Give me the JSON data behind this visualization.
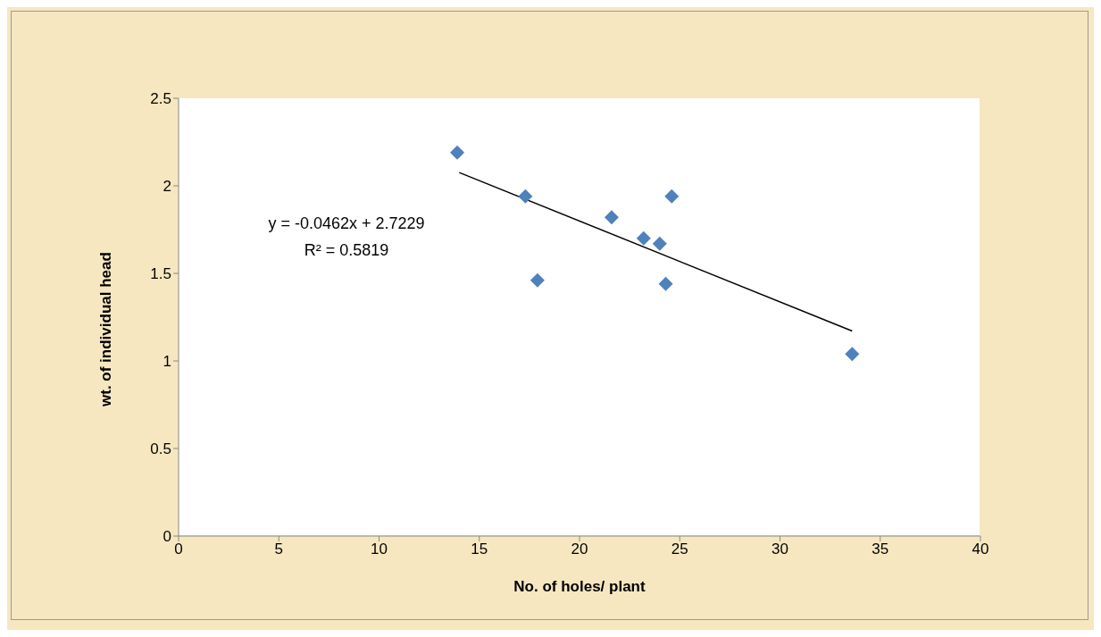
{
  "chart_data": {
    "type": "scatter",
    "xlabel": "No. of holes/ plant",
    "ylabel": "wt. of individual head",
    "xlim": [
      0,
      40
    ],
    "xticks": [
      0,
      5,
      10,
      15,
      20,
      25,
      30,
      35,
      40
    ],
    "ylim": [
      0,
      2.5
    ],
    "yticks": [
      0,
      0.5,
      1,
      1.5,
      2,
      2.5
    ],
    "series": [
      {
        "marker": "diamond",
        "color": "#4f81bd",
        "x": [
          13.9,
          17.3,
          17.9,
          21.6,
          23.2,
          24.0,
          24.3,
          24.6,
          33.6
        ],
        "values": [
          2.19,
          1.94,
          1.46,
          1.82,
          1.7,
          1.67,
          1.44,
          1.94,
          1.04
        ]
      },
      {
        "type": "line",
        "color": "#000000",
        "x": [
          14,
          33.6
        ],
        "values": [
          2.076,
          1.171
        ]
      }
    ],
    "annotations": [
      "y = -0.0462x + 2.7229",
      "R² = 0.5819"
    ]
  }
}
